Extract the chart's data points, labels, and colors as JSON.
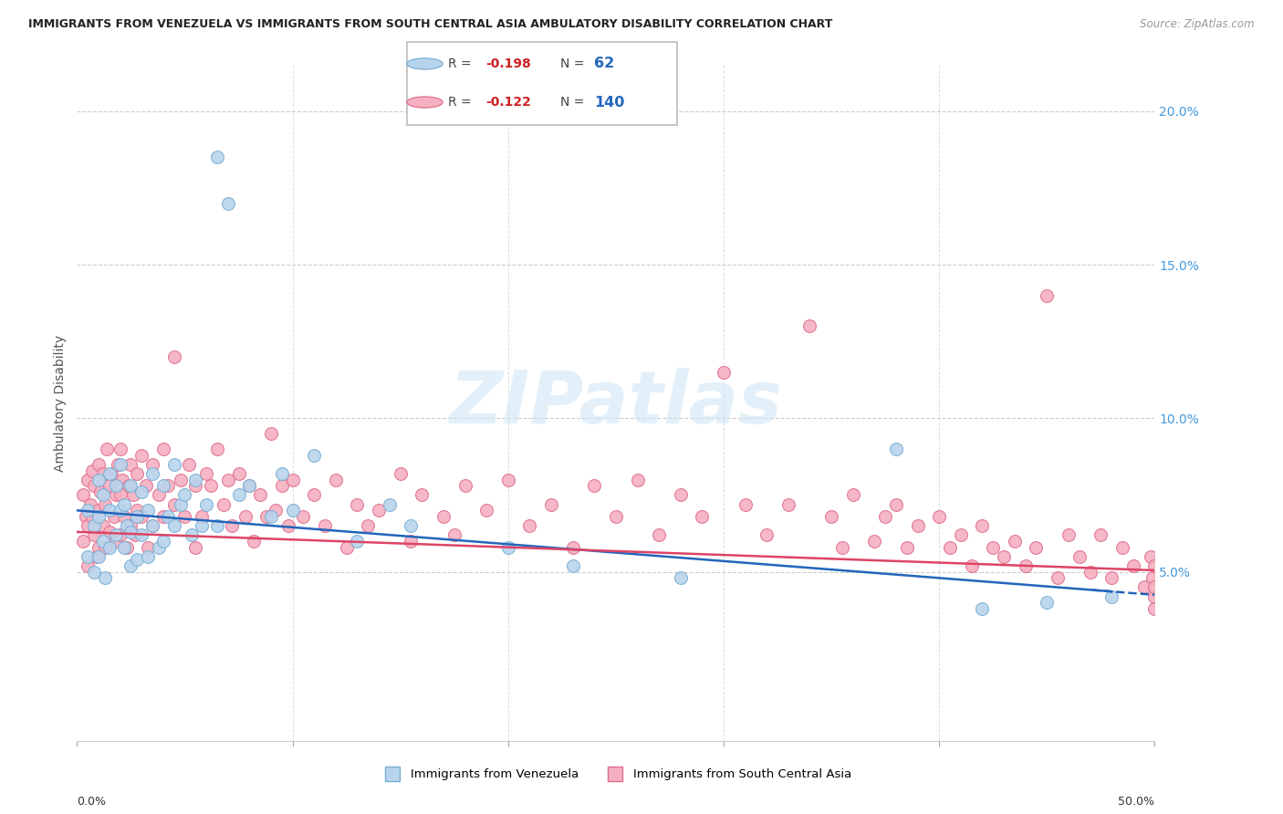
{
  "title": "IMMIGRANTS FROM VENEZUELA VS IMMIGRANTS FROM SOUTH CENTRAL ASIA AMBULATORY DISABILITY CORRELATION CHART",
  "source": "Source: ZipAtlas.com",
  "ylabel": "Ambulatory Disability",
  "xlim": [
    0.0,
    0.5
  ],
  "ylim": [
    -0.005,
    0.215
  ],
  "venezuela_R": -0.198,
  "venezuela_N": 62,
  "sca_R": -0.122,
  "sca_N": 140,
  "venezuela_color": "#b8d4ed",
  "venezuela_edge_color": "#7aafd4",
  "sca_color": "#f5b0c0",
  "sca_edge_color": "#e07090",
  "trend_venezuela_color": "#2266bb",
  "trend_sca_color": "#dd4466",
  "watermark": "ZIPatlas",
  "ytick_color": "#4499dd",
  "legend_R_color": "#cc2222",
  "legend_N_color": "#2266bb"
}
